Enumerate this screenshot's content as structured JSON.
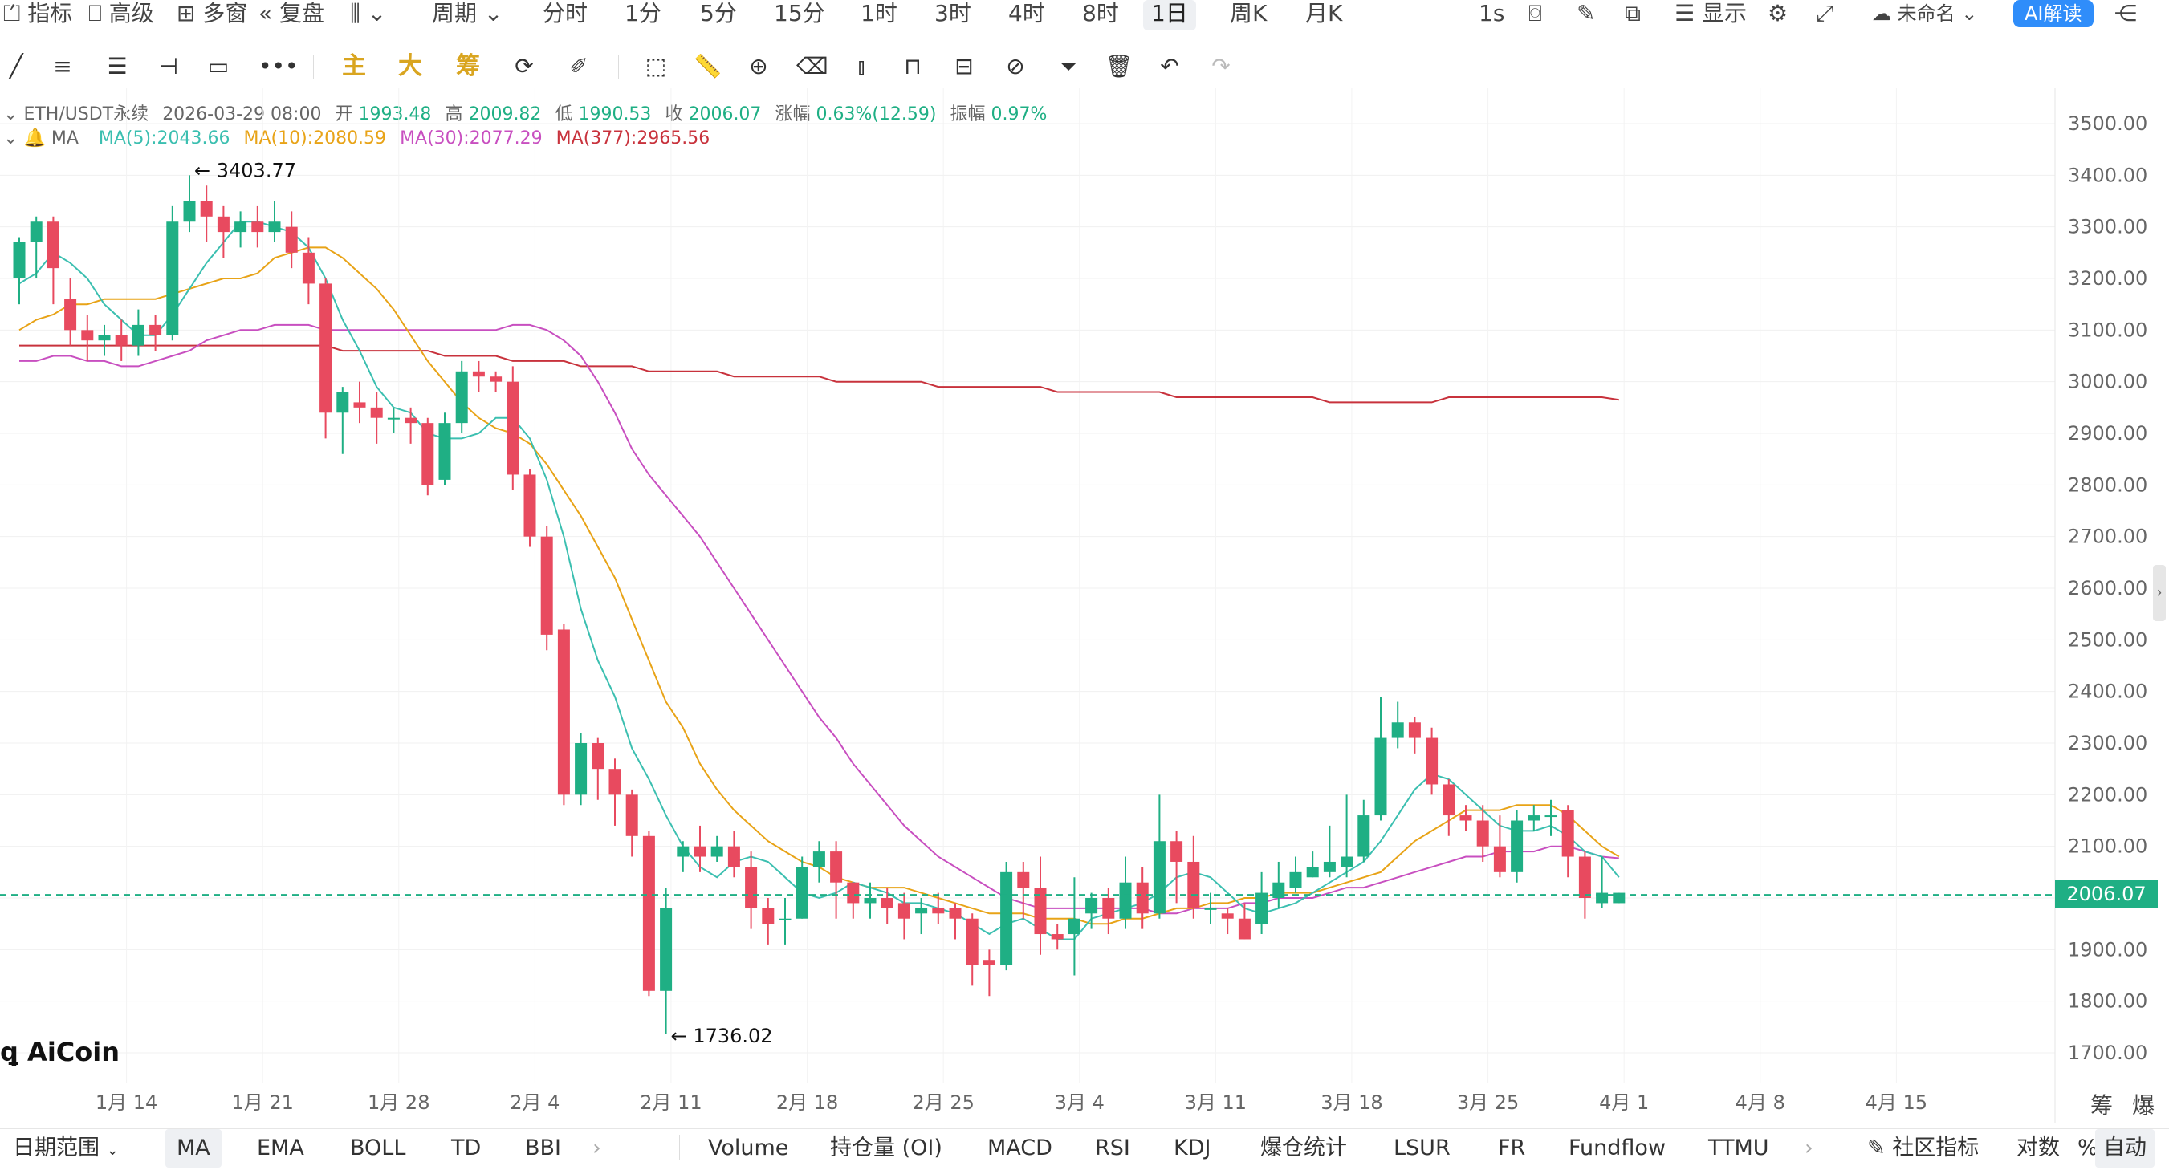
{
  "topbar": {
    "indicators": "指标",
    "advanced": "高级",
    "multi_window": "多窗",
    "replay": "复盘",
    "period": "周期",
    "intervals": [
      "分时",
      "1分",
      "5分",
      "15分",
      "1时",
      "3时",
      "4时",
      "8时",
      "1日",
      "周K",
      "月K"
    ],
    "active_interval": "1日",
    "second": "1s",
    "display": "显示",
    "unnamed": "未命名",
    "ai_read": "AI解读"
  },
  "tools": {
    "main": "主",
    "big": "大",
    "chips": "筹"
  },
  "info": {
    "symbol": "ETH/USDT永续",
    "datetime": "2026-03-29 08:00",
    "open_label": "开",
    "open": "1993.48",
    "high_label": "高",
    "high": "2009.82",
    "low_label": "低",
    "low": "1990.53",
    "close_label": "收",
    "close": "2006.07",
    "change_label": "涨幅",
    "change": "0.63%(12.59)",
    "amp_label": "振幅",
    "amp": "0.97%",
    "ma_label": "MA",
    "ma5": "MA(5):2043.66",
    "ma10": "MA(10):2080.59",
    "ma30": "MA(30):2077.29",
    "ma377": "MA(377):2965.56"
  },
  "colors": {
    "up": "#1faf84",
    "down": "#e84a5f",
    "ma5": "#3bbfb0",
    "ma10": "#e8a317",
    "ma30": "#c84fc0",
    "ma377": "#c8323c"
  },
  "chart_data": {
    "type": "candlestick",
    "y_ticks": [
      "3500.00",
      "3400.00",
      "3300.00",
      "3200.00",
      "3100.00",
      "3000.00",
      "2900.00",
      "2800.00",
      "2700.00",
      "2600.00",
      "2500.00",
      "2400.00",
      "2300.00",
      "2200.00",
      "2100.00",
      "2000.00",
      "1900.00",
      "1800.00",
      "1700.00"
    ],
    "x_labels": [
      "1月 14",
      "1月 21",
      "1月 28",
      "2月 4",
      "2月 11",
      "2月 18",
      "2月 25",
      "3月 4",
      "3月 11",
      "3月 18",
      "3月 25",
      "4月 1",
      "4月 8",
      "4月 15"
    ],
    "last_price": "2006.07",
    "high_marker": "← 3403.77",
    "low_marker": "← 1736.02",
    "candles": [
      [
        3200,
        3270,
        3150,
        3280
      ],
      [
        3270,
        3310,
        3200,
        3320
      ],
      [
        3310,
        3220,
        3150,
        3320
      ],
      [
        3160,
        3100,
        3070,
        3200
      ],
      [
        3100,
        3080,
        3040,
        3130
      ],
      [
        3080,
        3090,
        3050,
        3110
      ],
      [
        3090,
        3070,
        3040,
        3120
      ],
      [
        3070,
        3110,
        3050,
        3140
      ],
      [
        3110,
        3090,
        3060,
        3130
      ],
      [
        3090,
        3310,
        3080,
        3340
      ],
      [
        3310,
        3350,
        3290,
        3400
      ],
      [
        3350,
        3320,
        3270,
        3380
      ],
      [
        3320,
        3290,
        3240,
        3340
      ],
      [
        3290,
        3310,
        3260,
        3330
      ],
      [
        3310,
        3290,
        3260,
        3340
      ],
      [
        3290,
        3310,
        3270,
        3350
      ],
      [
        3300,
        3250,
        3220,
        3330
      ],
      [
        3250,
        3190,
        3150,
        3280
      ],
      [
        3190,
        2940,
        2890,
        3200
      ],
      [
        2940,
        2980,
        2860,
        2990
      ],
      [
        2960,
        2950,
        2920,
        3000
      ],
      [
        2950,
        2930,
        2880,
        2980
      ],
      [
        2930,
        2930,
        2900,
        2950
      ],
      [
        2930,
        2920,
        2880,
        2950
      ],
      [
        2920,
        2800,
        2780,
        2930
      ],
      [
        2810,
        2920,
        2800,
        2940
      ],
      [
        2920,
        3020,
        2900,
        3040
      ],
      [
        3020,
        3010,
        2980,
        3040
      ],
      [
        3010,
        3000,
        2980,
        3020
      ],
      [
        3000,
        2820,
        2790,
        3030
      ],
      [
        2820,
        2700,
        2680,
        2830
      ],
      [
        2700,
        2510,
        2480,
        2720
      ],
      [
        2520,
        2200,
        2180,
        2530
      ],
      [
        2200,
        2300,
        2180,
        2320
      ],
      [
        2300,
        2250,
        2190,
        2310
      ],
      [
        2250,
        2200,
        2140,
        2270
      ],
      [
        2200,
        2120,
        2080,
        2210
      ],
      [
        2120,
        1820,
        1810,
        2130
      ],
      [
        1820,
        1980,
        1736,
        2020
      ],
      [
        2080,
        2100,
        2050,
        2110
      ],
      [
        2100,
        2080,
        2050,
        2140
      ],
      [
        2080,
        2100,
        2070,
        2120
      ],
      [
        2100,
        2060,
        2040,
        2130
      ],
      [
        2060,
        1980,
        1940,
        2090
      ],
      [
        1980,
        1950,
        1910,
        2000
      ],
      [
        1960,
        1960,
        1910,
        2000
      ],
      [
        1960,
        2060,
        1960,
        2080
      ],
      [
        2060,
        2090,
        2030,
        2110
      ],
      [
        2090,
        2030,
        1960,
        2110
      ],
      [
        2030,
        1990,
        1960,
        2030
      ],
      [
        1990,
        2000,
        1960,
        2030
      ],
      [
        2000,
        1980,
        1950,
        2020
      ],
      [
        1990,
        1960,
        1920,
        2010
      ],
      [
        1970,
        1980,
        1930,
        2000
      ],
      [
        1980,
        1970,
        1950,
        2010
      ],
      [
        1980,
        1960,
        1920,
        1990
      ],
      [
        1960,
        1870,
        1830,
        1970
      ],
      [
        1880,
        1870,
        1810,
        1900
      ],
      [
        1870,
        2050,
        1860,
        2070
      ],
      [
        2050,
        2020,
        1960,
        2070
      ],
      [
        2020,
        1930,
        1890,
        2080
      ],
      [
        1930,
        1920,
        1900,
        1950
      ],
      [
        1930,
        1960,
        1850,
        2040
      ],
      [
        1970,
        2000,
        1940,
        2010
      ],
      [
        2000,
        1960,
        1930,
        2020
      ],
      [
        1960,
        2030,
        1940,
        2080
      ],
      [
        2030,
        1970,
        1940,
        2060
      ],
      [
        1970,
        2110,
        1960,
        2200
      ],
      [
        2110,
        2070,
        1990,
        2130
      ],
      [
        2070,
        1980,
        1960,
        2120
      ],
      [
        1980,
        1980,
        1950,
        2010
      ],
      [
        1970,
        1960,
        1930,
        1980
      ],
      [
        1960,
        1920,
        1920,
        1990
      ],
      [
        1950,
        2010,
        1930,
        2050
      ],
      [
        2000,
        2030,
        1980,
        2070
      ],
      [
        2020,
        2050,
        2010,
        2080
      ],
      [
        2040,
        2060,
        2040,
        2090
      ],
      [
        2050,
        2070,
        2040,
        2140
      ],
      [
        2060,
        2080,
        2040,
        2200
      ],
      [
        2080,
        2160,
        2070,
        2190
      ],
      [
        2160,
        2310,
        2150,
        2390
      ],
      [
        2310,
        2340,
        2290,
        2380
      ],
      [
        2340,
        2310,
        2280,
        2350
      ],
      [
        2310,
        2220,
        2200,
        2330
      ],
      [
        2220,
        2160,
        2120,
        2230
      ],
      [
        2160,
        2150,
        2130,
        2180
      ],
      [
        2150,
        2100,
        2070,
        2180
      ],
      [
        2100,
        2050,
        2040,
        2160
      ],
      [
        2050,
        2150,
        2030,
        2170
      ],
      [
        2150,
        2160,
        2130,
        2180
      ],
      [
        2160,
        2160,
        2120,
        2190
      ],
      [
        2170,
        2080,
        2040,
        2180
      ],
      [
        2080,
        2000,
        1960,
        2090
      ],
      [
        1990,
        2010,
        1980,
        2080
      ],
      [
        1990,
        2010,
        1990,
        2010
      ]
    ],
    "ma5": [
      3190,
      3210,
      3250,
      3230,
      3200,
      3150,
      3120,
      3090,
      3090,
      3130,
      3180,
      3230,
      3270,
      3310,
      3310,
      3300,
      3290,
      3260,
      3200,
      3120,
      3060,
      2990,
      2950,
      2940,
      2900,
      2890,
      2890,
      2900,
      2930,
      2930,
      2890,
      2810,
      2700,
      2560,
      2460,
      2390,
      2290,
      2230,
      2160,
      2100,
      2060,
      2040,
      2070,
      2080,
      2070,
      2040,
      2010,
      2000,
      2010,
      2030,
      2020,
      2010,
      1990,
      1990,
      1980,
      1970,
      1950,
      1930,
      1950,
      1960,
      1940,
      1920,
      1920,
      1960,
      1970,
      1980,
      1990,
      2010,
      2040,
      2050,
      2040,
      2010,
      1980,
      1970,
      1980,
      1990,
      2010,
      2030,
      2050,
      2070,
      2110,
      2160,
      2210,
      2240,
      2230,
      2200,
      2170,
      2140,
      2130,
      2130,
      2140,
      2120,
      2090,
      2080,
      2040
    ],
    "ma10": [
      3100,
      3120,
      3130,
      3150,
      3150,
      3160,
      3160,
      3160,
      3160,
      3170,
      3180,
      3190,
      3200,
      3200,
      3210,
      3240,
      3250,
      3260,
      3260,
      3240,
      3210,
      3180,
      3140,
      3090,
      3040,
      3000,
      2960,
      2930,
      2910,
      2900,
      2880,
      2840,
      2790,
      2740,
      2680,
      2620,
      2540,
      2460,
      2380,
      2330,
      2260,
      2210,
      2170,
      2140,
      2110,
      2090,
      2070,
      2060,
      2040,
      2030,
      2020,
      2020,
      2020,
      2010,
      2000,
      1990,
      1980,
      1970,
      1970,
      1970,
      1960,
      1960,
      1960,
      1950,
      1950,
      1960,
      1960,
      1970,
      1980,
      1980,
      1990,
      1990,
      2000,
      2000,
      2010,
      2010,
      2010,
      2020,
      2030,
      2040,
      2050,
      2080,
      2110,
      2130,
      2150,
      2170,
      2170,
      2170,
      2180,
      2180,
      2180,
      2160,
      2130,
      2100,
      2080
    ],
    "ma30": [
      3040,
      3040,
      3050,
      3050,
      3040,
      3040,
      3030,
      3030,
      3040,
      3050,
      3060,
      3080,
      3090,
      3100,
      3100,
      3110,
      3110,
      3110,
      3100,
      3100,
      3100,
      3100,
      3100,
      3100,
      3100,
      3100,
      3100,
      3100,
      3100,
      3110,
      3110,
      3100,
      3080,
      3050,
      3000,
      2940,
      2870,
      2820,
      2780,
      2740,
      2700,
      2650,
      2600,
      2550,
      2500,
      2450,
      2400,
      2350,
      2310,
      2260,
      2220,
      2180,
      2140,
      2110,
      2080,
      2060,
      2040,
      2020,
      2000,
      1990,
      1980,
      1980,
      1980,
      1980,
      1980,
      1980,
      1980,
      1970,
      1970,
      1980,
      1980,
      1980,
      1990,
      1990,
      2000,
      2000,
      2000,
      2010,
      2020,
      2020,
      2030,
      2040,
      2050,
      2060,
      2070,
      2080,
      2080,
      2090,
      2090,
      2090,
      2100,
      2100,
      2090,
      2080,
      2077
    ],
    "ma377": [
      3070,
      3070,
      3070,
      3070,
      3070,
      3070,
      3070,
      3070,
      3070,
      3070,
      3070,
      3070,
      3070,
      3070,
      3070,
      3070,
      3070,
      3070,
      3070,
      3060,
      3060,
      3060,
      3060,
      3060,
      3060,
      3050,
      3050,
      3050,
      3050,
      3040,
      3040,
      3040,
      3040,
      3030,
      3030,
      3030,
      3030,
      3020,
      3020,
      3020,
      3020,
      3020,
      3010,
      3010,
      3010,
      3010,
      3010,
      3010,
      3000,
      3000,
      3000,
      3000,
      3000,
      3000,
      2990,
      2990,
      2990,
      2990,
      2990,
      2990,
      2990,
      2980,
      2980,
      2980,
      2980,
      2980,
      2980,
      2980,
      2970,
      2970,
      2970,
      2970,
      2970,
      2970,
      2970,
      2970,
      2970,
      2960,
      2960,
      2960,
      2960,
      2960,
      2960,
      2960,
      2970,
      2970,
      2970,
      2970,
      2970,
      2970,
      2970,
      2970,
      2970,
      2970,
      2965
    ]
  },
  "logo": "AiCoin",
  "bottombar": {
    "date_range": "日期范围",
    "main_indicators": [
      "MA",
      "EMA",
      "BOLL",
      "TD",
      "BBI"
    ],
    "active_main": "MA",
    "sub_indicators": [
      "Volume",
      "持仓量 (OI)",
      "MACD",
      "RSI",
      "KDJ",
      "爆仓统计",
      "LSUR",
      "FR",
      "Fundflow",
      "TTMU"
    ],
    "community": "社区指标",
    "log": "对数",
    "percent": "%",
    "auto": "自动"
  },
  "right_axis_extra": {
    "chips": "筹",
    "liquidation": "爆"
  }
}
